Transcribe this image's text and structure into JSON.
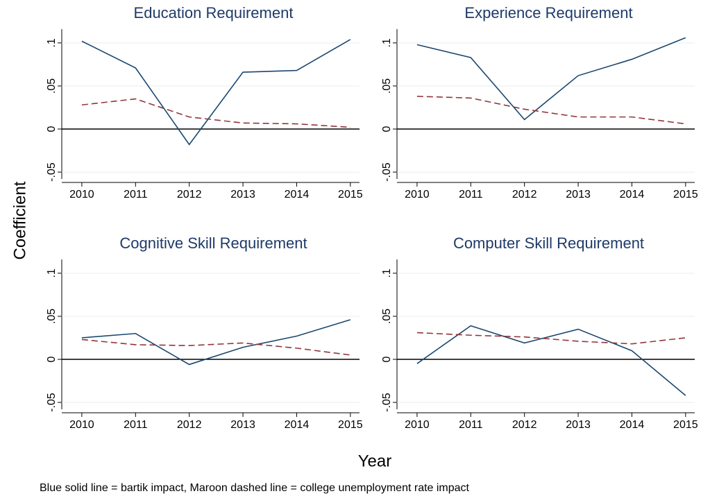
{
  "ylabel": "Coefficient",
  "xlabel": "Year",
  "note": "Blue solid line = bartik impact, Maroon dashed line = college unemployment rate impact",
  "chart_data": [
    {
      "type": "line",
      "title": "Education Requirement",
      "x": [
        2010,
        2011,
        2012,
        2013,
        2014,
        2015
      ],
      "series": [
        {
          "color": "#1a476f",
          "dashed": false,
          "values": [
            0.102,
            0.071,
            -0.018,
            0.066,
            0.068,
            0.104
          ]
        },
        {
          "color": "#90353b",
          "dashed": true,
          "values": [
            0.028,
            0.035,
            0.014,
            0.007,
            0.006,
            0.002
          ]
        }
      ],
      "xlim": [
        2009.73,
        2015.17
      ],
      "xticks": [
        2010,
        2011,
        2012,
        2013,
        2014,
        2015
      ],
      "ylim": [
        -0.058,
        0.116
      ],
      "yticks": [
        {
          "value": -0.05,
          "label": "-.05"
        },
        0,
        {
          "value": 0.05,
          "label": ".05"
        },
        {
          "value": 0.1,
          "label": ".1"
        }
      ],
      "reference_line": 0,
      "grid": true
    },
    {
      "type": "line",
      "title": "Experience Requirement",
      "x": [
        2010,
        2011,
        2012,
        2013,
        2014,
        2015
      ],
      "series": [
        {
          "color": "#1a476f",
          "dashed": false,
          "values": [
            0.098,
            0.083,
            0.011,
            0.062,
            0.081,
            0.106
          ]
        },
        {
          "color": "#90353b",
          "dashed": true,
          "values": [
            0.038,
            0.036,
            0.023,
            0.014,
            0.014,
            0.006
          ]
        }
      ],
      "xlim": [
        2009.73,
        2015.17
      ],
      "xticks": [
        2010,
        2011,
        2012,
        2013,
        2014,
        2015
      ],
      "ylim": [
        -0.058,
        0.116
      ],
      "yticks": [
        {
          "value": -0.05,
          "label": "-.05"
        },
        0,
        {
          "value": 0.05,
          "label": ".05"
        },
        {
          "value": 0.1,
          "label": ".1"
        }
      ],
      "reference_line": 0,
      "grid": true
    },
    {
      "type": "line",
      "title": "Cognitive Skill Requirement",
      "x": [
        2010,
        2011,
        2012,
        2013,
        2014,
        2015
      ],
      "series": [
        {
          "color": "#1a476f",
          "dashed": false,
          "values": [
            0.025,
            0.03,
            -0.006,
            0.014,
            0.027,
            0.046
          ]
        },
        {
          "color": "#90353b",
          "dashed": true,
          "values": [
            0.023,
            0.017,
            0.016,
            0.019,
            0.013,
            0.005
          ]
        }
      ],
      "xlim": [
        2009.73,
        2015.17
      ],
      "xticks": [
        2010,
        2011,
        2012,
        2013,
        2014,
        2015
      ],
      "ylim": [
        -0.058,
        0.116
      ],
      "yticks": [
        {
          "value": -0.05,
          "label": "-.05"
        },
        0,
        {
          "value": 0.05,
          "label": ".05"
        },
        {
          "value": 0.1,
          "label": ".1"
        }
      ],
      "reference_line": 0,
      "grid": true
    },
    {
      "type": "line",
      "title": "Computer Skill Requirement",
      "x": [
        2010,
        2011,
        2012,
        2013,
        2014,
        2015
      ],
      "series": [
        {
          "color": "#1a476f",
          "dashed": false,
          "values": [
            -0.005,
            0.039,
            0.019,
            0.035,
            0.01,
            -0.042
          ]
        },
        {
          "color": "#90353b",
          "dashed": true,
          "values": [
            0.031,
            0.028,
            0.026,
            0.021,
            0.018,
            0.025
          ]
        }
      ],
      "xlim": [
        2009.73,
        2015.17
      ],
      "xticks": [
        2010,
        2011,
        2012,
        2013,
        2014,
        2015
      ],
      "ylim": [
        -0.058,
        0.116
      ],
      "yticks": [
        {
          "value": -0.05,
          "label": "-.05"
        },
        0,
        {
          "value": 0.05,
          "label": ".05"
        },
        {
          "value": 0.1,
          "label": ".1"
        }
      ],
      "reference_line": 0,
      "grid": true
    }
  ]
}
